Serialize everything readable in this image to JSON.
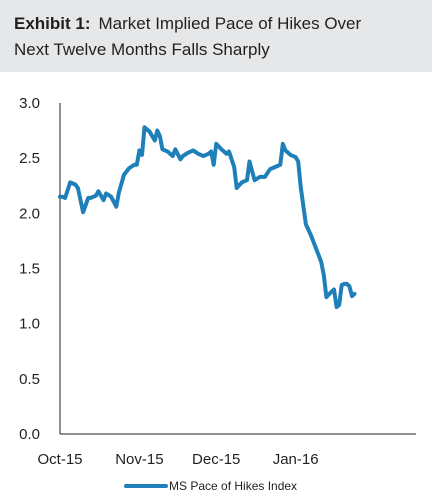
{
  "header": {
    "exhibit_label": "Exhibit 1:",
    "title_line1": "Market Implied Pace of Hikes Over",
    "title_line2": "Next Twelve Months Falls Sharply"
  },
  "chart_data": {
    "type": "line",
    "title": "Market Implied Pace of Hikes Over Next Twelve Months Falls Sharply",
    "ylim": [
      0,
      3
    ],
    "yticks": [
      "0.0",
      "0.5",
      "1.0",
      "1.5",
      "2.0",
      "2.5",
      "3.0"
    ],
    "xlim": [
      "2015-10-01",
      "2016-02-17"
    ],
    "xticks": [
      {
        "label": "Oct-15",
        "date": "2015-10-01"
      },
      {
        "label": "Nov-15",
        "date": "2015-11-01"
      },
      {
        "label": "Dec-15",
        "date": "2015-12-01"
      },
      {
        "label": "Jan-16",
        "date": "2016-01-01"
      }
    ],
    "line_color": "#1f7fb8",
    "legend_position": "bottom-center",
    "series": [
      {
        "name": "MS Pace of Hikes Index",
        "points": [
          [
            "2015-10-01",
            2.15
          ],
          [
            "2015-10-02",
            2.15
          ],
          [
            "2015-10-03",
            2.14
          ],
          [
            "2015-10-05",
            2.28
          ],
          [
            "2015-10-07",
            2.26
          ],
          [
            "2015-10-08",
            2.23
          ],
          [
            "2015-10-10",
            2.01
          ],
          [
            "2015-10-12",
            2.14
          ],
          [
            "2015-10-13",
            2.14
          ],
          [
            "2015-10-15",
            2.16
          ],
          [
            "2015-10-16",
            2.2
          ],
          [
            "2015-10-18",
            2.12
          ],
          [
            "2015-10-19",
            2.18
          ],
          [
            "2015-10-21",
            2.15
          ],
          [
            "2015-10-23",
            2.06
          ],
          [
            "2015-10-24",
            2.19
          ],
          [
            "2015-10-26",
            2.35
          ],
          [
            "2015-10-28",
            2.41
          ],
          [
            "2015-10-30",
            2.44
          ],
          [
            "2015-10-31",
            2.44
          ],
          [
            "2015-11-01",
            2.57
          ],
          [
            "2015-11-02",
            2.53
          ],
          [
            "2015-11-03",
            2.78
          ],
          [
            "2015-11-05",
            2.74
          ],
          [
            "2015-11-07",
            2.66
          ],
          [
            "2015-11-08",
            2.75
          ],
          [
            "2015-11-09",
            2.7
          ],
          [
            "2015-11-10",
            2.58
          ],
          [
            "2015-11-12",
            2.56
          ],
          [
            "2015-11-14",
            2.52
          ],
          [
            "2015-11-15",
            2.58
          ],
          [
            "2015-11-17",
            2.49
          ],
          [
            "2015-11-18",
            2.52
          ],
          [
            "2015-11-20",
            2.55
          ],
          [
            "2015-11-22",
            2.57
          ],
          [
            "2015-11-24",
            2.54
          ],
          [
            "2015-11-26",
            2.52
          ],
          [
            "2015-11-28",
            2.54
          ],
          [
            "2015-11-29",
            2.56
          ],
          [
            "2015-11-30",
            2.44
          ],
          [
            "2015-12-01",
            2.63
          ],
          [
            "2015-12-03",
            2.58
          ],
          [
            "2015-12-05",
            2.54
          ],
          [
            "2015-12-06",
            2.56
          ],
          [
            "2015-12-08",
            2.42
          ],
          [
            "2015-12-09",
            2.23
          ],
          [
            "2015-12-11",
            2.28
          ],
          [
            "2015-12-13",
            2.3
          ],
          [
            "2015-12-14",
            2.47
          ],
          [
            "2015-12-16",
            2.3
          ],
          [
            "2015-12-18",
            2.33
          ],
          [
            "2015-12-20",
            2.33
          ],
          [
            "2015-12-22",
            2.4
          ],
          [
            "2015-12-24",
            2.42
          ],
          [
            "2015-12-26",
            2.44
          ],
          [
            "2015-12-27",
            2.63
          ],
          [
            "2015-12-28",
            2.57
          ],
          [
            "2015-12-30",
            2.53
          ],
          [
            "2016-01-01",
            2.51
          ],
          [
            "2016-01-02",
            2.47
          ],
          [
            "2016-01-03",
            2.24
          ],
          [
            "2016-01-05",
            1.9
          ],
          [
            "2016-01-07",
            1.8
          ],
          [
            "2016-01-09",
            1.68
          ],
          [
            "2016-01-11",
            1.56
          ],
          [
            "2016-01-12",
            1.44
          ],
          [
            "2016-01-13",
            1.24
          ],
          [
            "2016-01-15",
            1.29
          ],
          [
            "2016-01-16",
            1.31
          ],
          [
            "2016-01-17",
            1.15
          ],
          [
            "2016-01-18",
            1.17
          ],
          [
            "2016-01-19",
            1.35
          ],
          [
            "2016-01-20",
            1.36
          ],
          [
            "2016-01-21",
            1.36
          ],
          [
            "2016-01-22",
            1.34
          ],
          [
            "2016-01-23",
            1.25
          ],
          [
            "2016-01-24",
            1.27
          ]
        ]
      }
    ]
  }
}
